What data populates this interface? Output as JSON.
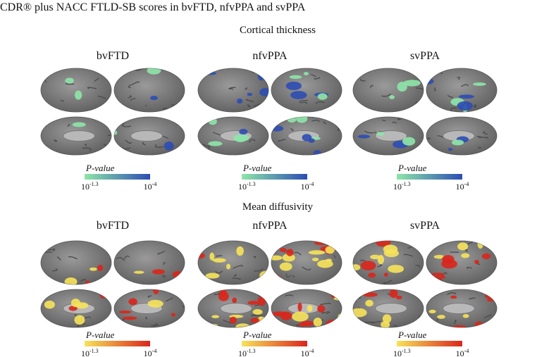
{
  "title": "CDR® plus NACC FTLD-SB scores in bvFTD, nfvPPA and svPPA",
  "sections": [
    {
      "title": "Cortical thickness",
      "colormap": [
        "#8ee6a8",
        "#2c4db3"
      ],
      "panels": [
        {
          "label": "bvFTD",
          "legend": {
            "title": "P-value",
            "min": {
              "base": "10",
              "exponent": "-1.3"
            },
            "max": {
              "base": "10",
              "exponent": "-4"
            }
          }
        },
        {
          "label": "nfvPPA",
          "legend": {
            "title": "P-value",
            "min": {
              "base": "10",
              "exponent": "-1.3"
            },
            "max": {
              "base": "10",
              "exponent": "-4"
            }
          }
        },
        {
          "label": "svPPA",
          "legend": {
            "title": "P-value",
            "min": {
              "base": "10",
              "exponent": "-1.3"
            },
            "max": {
              "base": "10",
              "exponent": "-4"
            }
          }
        }
      ]
    },
    {
      "title": "Mean diffusivity",
      "colormap": [
        "#f7e35a",
        "#d9261c"
      ],
      "panels": [
        {
          "label": "bvFTD",
          "legend": {
            "title": "P-value",
            "min": {
              "base": "10",
              "exponent": "-1.3"
            },
            "max": {
              "base": "10",
              "exponent": "-4"
            }
          }
        },
        {
          "label": "nfvPPA",
          "legend": {
            "title": "P-value",
            "min": {
              "base": "10",
              "exponent": "-1.3"
            },
            "max": {
              "base": "10",
              "exponent": "-4"
            }
          }
        },
        {
          "label": "svPPA",
          "legend": {
            "title": "P-value",
            "min": {
              "base": "10",
              "exponent": "-1.3"
            },
            "max": {
              "base": "10",
              "exponent": "-4"
            }
          }
        }
      ]
    }
  ]
}
